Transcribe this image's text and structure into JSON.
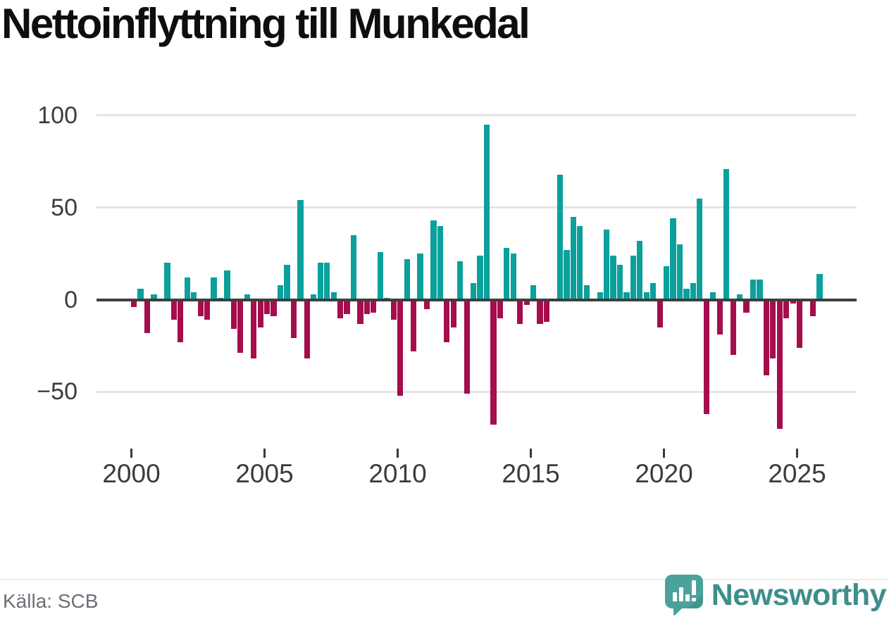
{
  "title": "Nettoinflyttning till Munkedal",
  "footer": {
    "source": "Källa: SCB",
    "brand": "Newsworthy"
  },
  "colors": {
    "positive_bar": "#0ba09c",
    "negative_bar": "#a50d4d",
    "gridline": "#e4e4e4",
    "zero_line": "#3e3e3e",
    "axis_text": "#3b3b3b",
    "title_text": "#0e0e0e",
    "source_text": "#6d7076",
    "brand_text": "#3e8e8b",
    "brand_icon": "#4ba29c",
    "brand_icon_shade": "#3f948e"
  },
  "chart_data": {
    "type": "bar",
    "title": "Nettoinflyttning till Munkedal",
    "frequency": "quarterly",
    "xlabel": "",
    "ylabel": "",
    "grid": "horizontal",
    "legend": "none",
    "x_axis_tick_labels": [
      "2000",
      "2005",
      "2010",
      "2015",
      "2020",
      "2025"
    ],
    "y_axis_tick_labels": [
      "100",
      "50",
      "0",
      "−50"
    ],
    "y_axis_ticks": [
      100,
      50,
      0,
      -50
    ],
    "ylim": [
      -75,
      110
    ],
    "values_by_year": {
      "2000": [
        -4,
        6,
        -18,
        3
      ],
      "2001": [
        0,
        20,
        -11,
        -23
      ],
      "2002": [
        12,
        4,
        -9,
        -11
      ],
      "2003": [
        12,
        1,
        16,
        -16
      ],
      "2004": [
        -29,
        3,
        -32,
        -15
      ],
      "2005": [
        -8,
        -9,
        8,
        19
      ],
      "2006": [
        -21,
        54,
        -32,
        3
      ],
      "2007": [
        20,
        20,
        4,
        -10
      ],
      "2008": [
        -8,
        35,
        -13,
        -8
      ],
      "2009": [
        -7,
        26,
        1,
        -11
      ],
      "2010": [
        -52,
        22,
        -28,
        25
      ],
      "2011": [
        -5,
        43,
        40,
        -23
      ],
      "2012": [
        -15,
        21,
        -51,
        9
      ],
      "2013": [
        24,
        95,
        -68,
        -10
      ],
      "2014": [
        28,
        25,
        -13,
        -3
      ],
      "2015": [
        8,
        -13,
        -12,
        0
      ],
      "2016": [
        68,
        27,
        45,
        40
      ],
      "2017": [
        8,
        0,
        4,
        38
      ],
      "2018": [
        24,
        19,
        4,
        24
      ],
      "2019": [
        32,
        4,
        9,
        -15
      ],
      "2020": [
        18,
        44,
        30,
        6
      ],
      "2021": [
        9,
        55,
        -62,
        4
      ],
      "2022": [
        -19,
        71,
        -30,
        3
      ],
      "2023": [
        -7,
        11,
        11,
        -41
      ],
      "2024": [
        -32,
        -70,
        -10,
        -2
      ],
      "2025": [
        -26,
        0,
        -9,
        14
      ]
    }
  }
}
